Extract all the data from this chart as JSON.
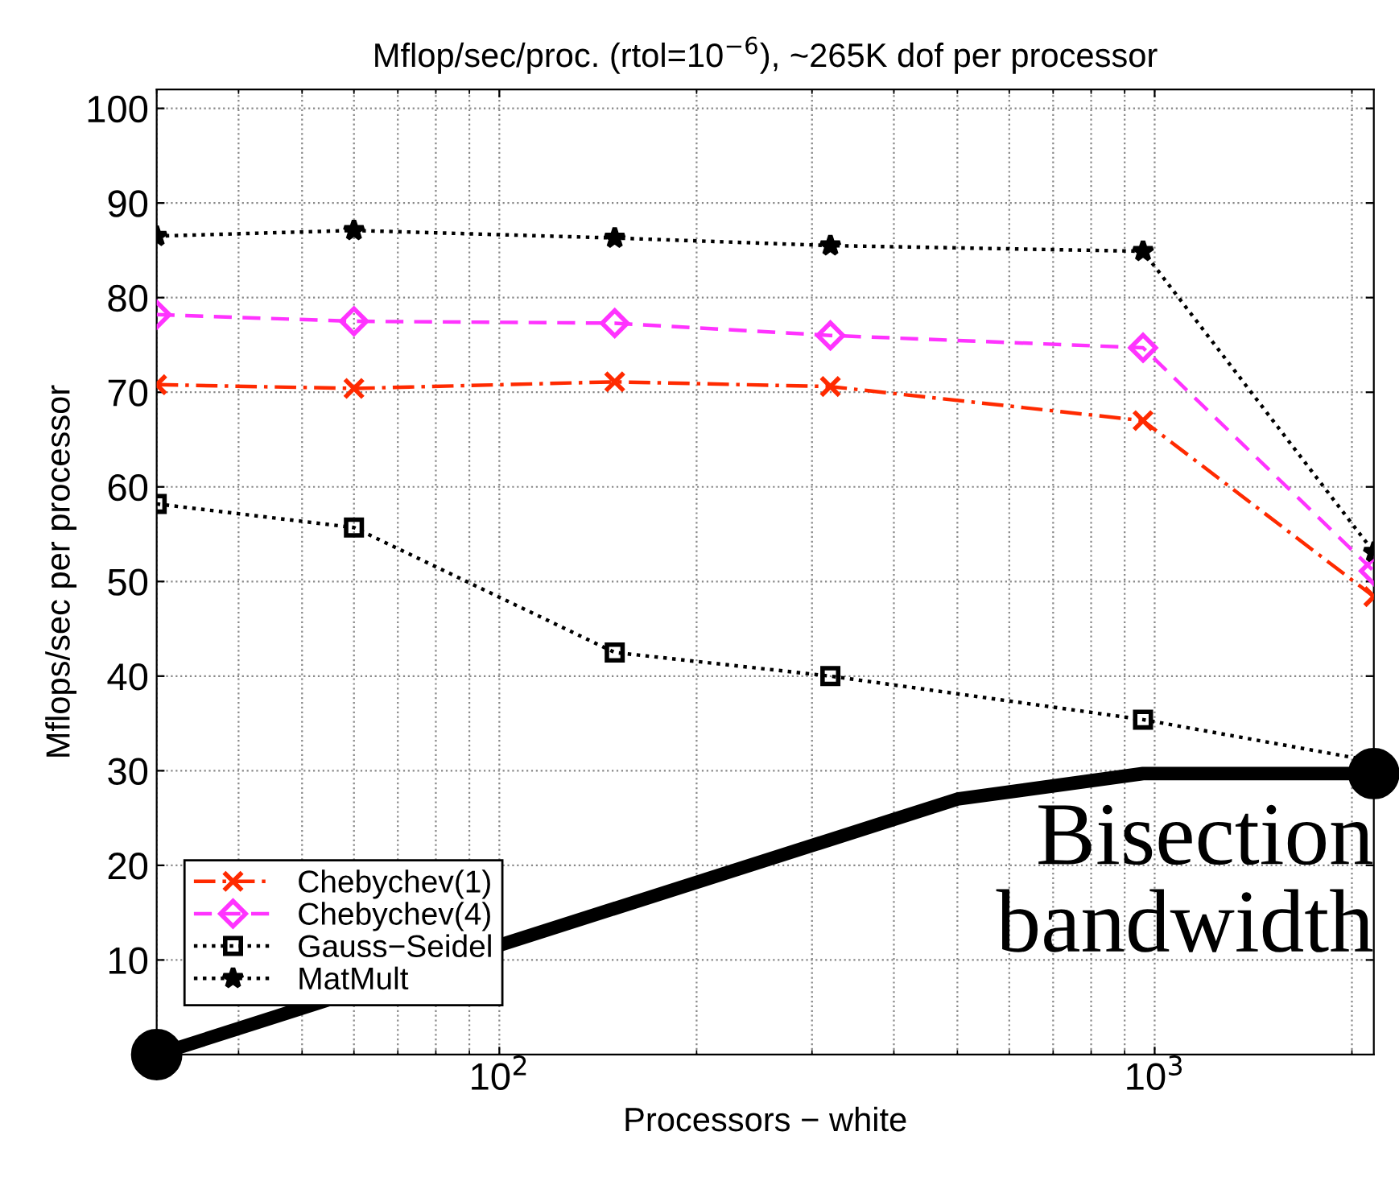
{
  "chart_data": {
    "type": "line",
    "title": "Mflop/sec/proc. (rtol=10$^{−6}$), ~265K dof per processor",
    "xlabel": "Processors − white",
    "ylabel": "Mflops/sec per processor",
    "log": "x",
    "xlim": [
      30,
      2160
    ],
    "ylim": [
      0,
      102
    ],
    "xticks": [
      {
        "value": 100,
        "label": "10$^{2}$"
      },
      {
        "value": 1000,
        "label": "10$^{3}$"
      }
    ],
    "yticks": [
      10,
      20,
      30,
      40,
      50,
      60,
      70,
      80,
      90,
      100
    ],
    "grid": true,
    "legend": "bottom left",
    "x": [
      30,
      60,
      150,
      320,
      960,
      2160
    ],
    "series": [
      {
        "name": "Chebychev(1)",
        "color": "#ff2a00",
        "marker": "cross",
        "line_style": "dashdot",
        "values": [
          70.8,
          70.4,
          71.1,
          70.6,
          67.0,
          48.4
        ]
      },
      {
        "name": "Chebychev(4)",
        "color": "#ff33ff",
        "marker": "diamond",
        "line_style": "dashed",
        "values": [
          78.2,
          77.5,
          77.3,
          76.0,
          74.7,
          51.1
        ]
      },
      {
        "name": "Gauss−Seidel",
        "color": "#000000",
        "marker": "square",
        "line_style": "dotted",
        "values": [
          58.2,
          55.7,
          42.5,
          40.0,
          35.4,
          31
        ]
      },
      {
        "name": "MatMult",
        "color": "#000000",
        "marker": "star",
        "line_style": "dotted",
        "values": [
          86.5,
          87.1,
          86.3,
          85.5,
          84.9,
          53.1
        ]
      },
      {
        "name": "Bisection\nbandwidth",
        "color": "#000000",
        "marker": "none",
        "line_style": "solid",
        "x": [
          30,
          500,
          960,
          2160
        ],
        "values": [
          0,
          27.0,
          29.7,
          29.7
        ]
      },
      {
        "type": "scatter",
        "color": "#000000",
        "marker": "circle",
        "x": [
          30,
          2160
        ],
        "values": [
          0,
          29.7
        ]
      }
    ]
  }
}
